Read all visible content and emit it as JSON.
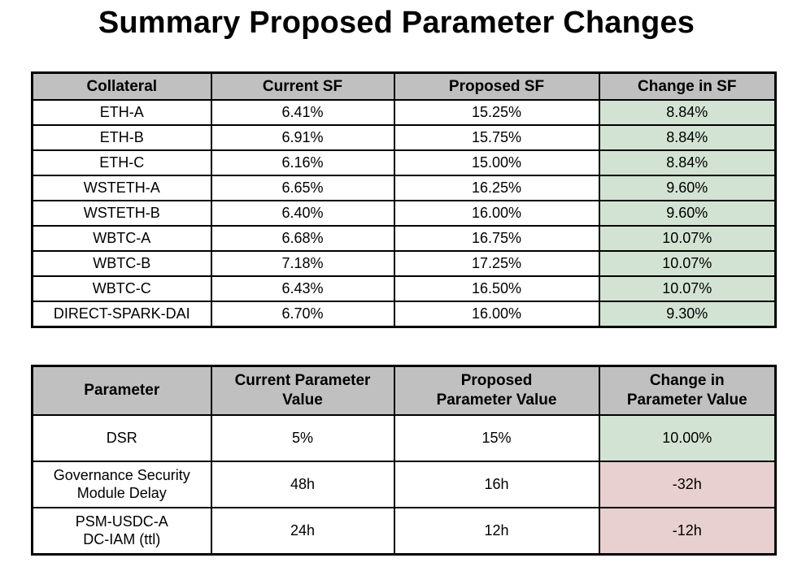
{
  "title": "Summary Proposed Parameter Changes",
  "colors": {
    "page_bg": "#ffffff",
    "text": "#000000",
    "border": "#000000",
    "header_bg": "#c0c0c0",
    "positive_bg": "#d3e3d3",
    "negative_bg": "#e8d0d0"
  },
  "collateral_table": {
    "headers": [
      "Collateral",
      "Current SF",
      "Proposed SF",
      "Change in SF"
    ],
    "rows": [
      {
        "collateral": "ETH-A",
        "current_sf": "6.41%",
        "proposed_sf": "15.25%",
        "change_sf": "8.84%",
        "tone": "positive"
      },
      {
        "collateral": "ETH-B",
        "current_sf": "6.91%",
        "proposed_sf": "15.75%",
        "change_sf": "8.84%",
        "tone": "positive"
      },
      {
        "collateral": "ETH-C",
        "current_sf": "6.16%",
        "proposed_sf": "15.00%",
        "change_sf": "8.84%",
        "tone": "positive"
      },
      {
        "collateral": "WSTETH-A",
        "current_sf": "6.65%",
        "proposed_sf": "16.25%",
        "change_sf": "9.60%",
        "tone": "positive"
      },
      {
        "collateral": "WSTETH-B",
        "current_sf": "6.40%",
        "proposed_sf": "16.00%",
        "change_sf": "9.60%",
        "tone": "positive"
      },
      {
        "collateral": "WBTC-A",
        "current_sf": "6.68%",
        "proposed_sf": "16.75%",
        "change_sf": "10.07%",
        "tone": "positive"
      },
      {
        "collateral": "WBTC-B",
        "current_sf": "7.18%",
        "proposed_sf": "17.25%",
        "change_sf": "10.07%",
        "tone": "positive"
      },
      {
        "collateral": "WBTC-C",
        "current_sf": "6.43%",
        "proposed_sf": "16.50%",
        "change_sf": "10.07%",
        "tone": "positive"
      },
      {
        "collateral": "DIRECT-SPARK-DAI",
        "current_sf": "6.70%",
        "proposed_sf": "16.00%",
        "change_sf": "9.30%",
        "tone": "positive"
      }
    ]
  },
  "parameter_table": {
    "header_lines": [
      [
        "Parameter"
      ],
      [
        "Current Parameter",
        "Value"
      ],
      [
        "Proposed",
        "Parameter Value"
      ],
      [
        "Change in",
        "Parameter Value"
      ]
    ],
    "rows": [
      {
        "parameter_lines": [
          "DSR"
        ],
        "current_value": "5%",
        "proposed_value": "15%",
        "change_value": "10.00%",
        "tone": "positive"
      },
      {
        "parameter_lines": [
          "Governance Security",
          "Module Delay"
        ],
        "current_value": "48h",
        "proposed_value": "16h",
        "change_value": "-32h",
        "tone": "negative"
      },
      {
        "parameter_lines": [
          "PSM-USDC-A",
          "DC-IAM (ttl)"
        ],
        "current_value": "24h",
        "proposed_value": "12h",
        "change_value": "-12h",
        "tone": "negative"
      }
    ]
  }
}
